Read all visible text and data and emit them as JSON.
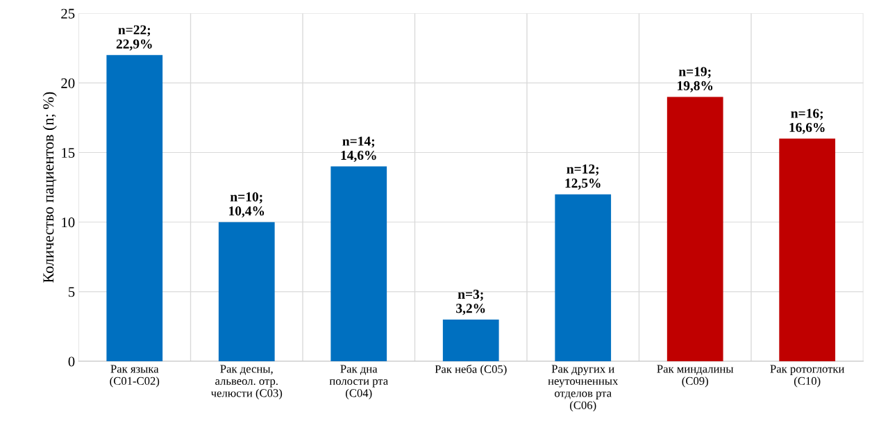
{
  "chart_data": {
    "type": "bar",
    "ylabel": "Количество пациентов (n; %)",
    "categories": [
      "Рак языка\n(С01-С02)",
      "Рак десны,\nальвеол. отр.\nчелюсти (С03)",
      "Рак дна\nполости рта\n(С04)",
      "Рак неба (С05)",
      "Рак других и\nнеуточненных\nотделов рта\n(С06)",
      "Рак миндалины\n(С09)",
      "Рак ротоглотки\n(С10)"
    ],
    "values": [
      22,
      10,
      14,
      3,
      12,
      19,
      16
    ],
    "colors": [
      "#0070c0",
      "#0070c0",
      "#0070c0",
      "#0070c0",
      "#0070c0",
      "#c00000",
      "#c00000"
    ],
    "value_labels": [
      "n=22;\n22,9%",
      "n=10;\n10,4%",
      "n=14;\n14,6%",
      "n=3;\n3,2%",
      "n=12;\n12,5%",
      "n=19;\n19,8%",
      "n=16;\n16,6%"
    ],
    "ylim": [
      0,
      25
    ],
    "yticks": [
      0,
      5,
      10,
      15,
      20,
      25
    ],
    "grid": true,
    "legend": false
  }
}
